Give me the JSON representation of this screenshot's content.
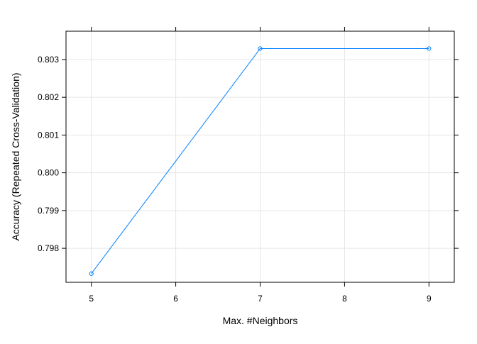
{
  "chart_data": {
    "type": "line",
    "xlabel": "Max. #Neighbors",
    "ylabel": "Accuracy (Repeated Cross-Validation)",
    "x": [
      5,
      7,
      9
    ],
    "series": [
      {
        "values": [
          0.79733,
          0.80329,
          0.80329
        ]
      }
    ],
    "xlim": [
      4.7,
      9.3
    ],
    "ylim": [
      0.7971,
      0.80375
    ],
    "xticks": [
      5,
      6,
      7,
      8,
      9
    ],
    "xtick_labels": [
      "5",
      "6",
      "7",
      "8",
      "9"
    ],
    "yticks": [
      0.798,
      0.799,
      0.8,
      0.801,
      0.802,
      0.803
    ],
    "ytick_labels": [
      "0.798",
      "0.799",
      "0.800",
      "0.801",
      "0.802",
      "0.803"
    ],
    "grid": true,
    "marker": "open-circle",
    "line_color": "#0080ff",
    "grid_color": "#e6e6e6"
  }
}
